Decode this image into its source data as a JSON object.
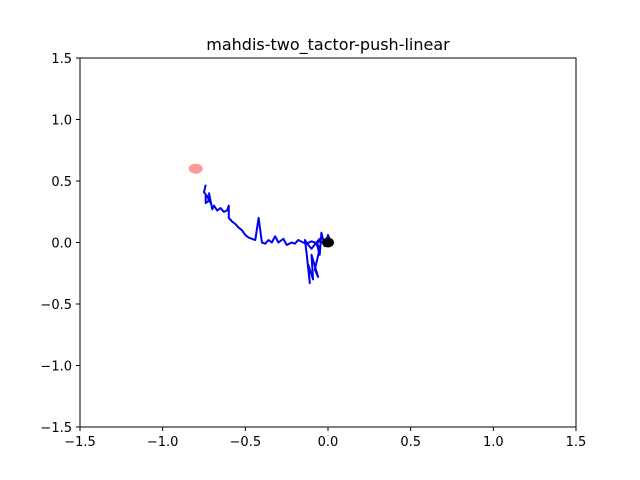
{
  "chart_data": {
    "type": "line",
    "title": "mahdis-two_tactor-push-linear",
    "xlabel": "",
    "ylabel": "",
    "xlim": [
      -1.5,
      1.5
    ],
    "ylim": [
      -1.5,
      1.5
    ],
    "grid": false,
    "x_ticks": [
      -1.5,
      -1.0,
      -0.5,
      0.0,
      0.5,
      1.0,
      1.5
    ],
    "y_ticks": [
      -1.5,
      -1.0,
      -0.5,
      0.0,
      0.5,
      1.0,
      1.5
    ],
    "x_tick_labels": [
      "−1.5",
      "−1.0",
      "−0.5",
      "0.0",
      "0.5",
      "1.0",
      "1.5"
    ],
    "y_tick_labels": [
      "−1.5",
      "−1.0",
      "−0.5",
      "0.0",
      "0.5",
      "1.0",
      "1.5"
    ],
    "colors": {
      "path": "#0000ee",
      "target": "#ff5555",
      "start": "#000000"
    },
    "target_marker": {
      "x": -0.8,
      "y": 0.6,
      "opacity": 0.6
    },
    "start_marker": {
      "x": 0.0,
      "y": 0.0
    },
    "series": [
      {
        "x": [
          0.02,
          0.0,
          -0.02,
          -0.04,
          -0.05,
          -0.07,
          -0.05,
          -0.08,
          -0.06,
          -0.1,
          -0.09,
          -0.12,
          -0.11,
          -0.13,
          -0.14,
          -0.12,
          -0.1,
          -0.07,
          -0.05,
          -0.04,
          -0.05,
          -0.06,
          -0.08,
          -0.1,
          -0.13,
          -0.15,
          -0.18,
          -0.2,
          -0.22,
          -0.25,
          -0.27,
          -0.3,
          -0.32,
          -0.34,
          -0.36,
          -0.38,
          -0.4,
          -0.42,
          -0.44,
          -0.46,
          -0.48,
          -0.5,
          -0.52,
          -0.54,
          -0.56,
          -0.58,
          -0.6,
          -0.6,
          -0.61,
          -0.63,
          -0.65,
          -0.67,
          -0.69,
          -0.7,
          -0.72,
          -0.71,
          -0.73,
          -0.72,
          -0.74,
          -0.74,
          -0.75,
          -0.74
        ],
        "y": [
          0.0,
          0.06,
          -0.03,
          0.08,
          -0.1,
          0.0,
          -0.05,
          -0.22,
          -0.28,
          -0.1,
          -0.3,
          -0.18,
          -0.33,
          -0.08,
          0.02,
          -0.02,
          -0.05,
          0.0,
          0.03,
          0.0,
          0.02,
          0.0,
          0.0,
          0.01,
          -0.01,
          0.0,
          0.02,
          -0.01,
          0.0,
          -0.02,
          0.03,
          0.0,
          0.05,
          0.0,
          0.02,
          -0.01,
          0.0,
          0.2,
          0.02,
          0.03,
          0.04,
          0.06,
          0.1,
          0.12,
          0.15,
          0.17,
          0.2,
          0.3,
          0.26,
          0.25,
          0.28,
          0.26,
          0.3,
          0.27,
          0.4,
          0.32,
          0.38,
          0.34,
          0.32,
          0.39,
          0.41,
          0.47
        ]
      }
    ]
  }
}
